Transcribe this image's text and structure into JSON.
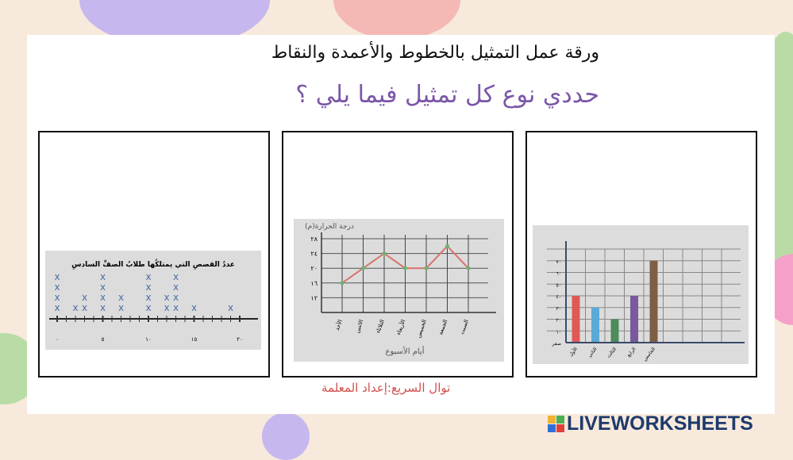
{
  "worksheet": {
    "title": "ورقة عمل التمثيل بالخطوط والأعمدة والنقاط",
    "question": "حددي نوع  كل تمثيل فيما يلي ؟",
    "credit": "توال السريع:إعداد المعلمة"
  },
  "logo": {
    "text": "LIVEWORKSHEETS",
    "badge": [
      "L",
      "I",
      "V",
      "E"
    ]
  },
  "colors": {
    "question": "#7b56a8",
    "credit": "#d0504e",
    "logo": "#1d3a6b"
  },
  "chart_data": [
    {
      "type": "scatter",
      "subtype": "line-plot",
      "title": "عددُ القصصِ التي يمتلكُها طلابُ الصفِّ السادسِ",
      "x_tick_labels": [
        "٠",
        "٥",
        "١٠",
        "١٥",
        "٢٠"
      ],
      "xlim": [
        0,
        20
      ],
      "x": [
        0,
        2,
        3,
        5,
        7,
        10,
        12,
        13,
        15,
        19
      ],
      "counts": [
        4,
        1,
        2,
        4,
        2,
        4,
        2,
        4,
        1,
        1
      ],
      "marker": "X"
    },
    {
      "type": "line",
      "ylabel": "درجة الحرارة(م)",
      "xlabel": "أيام الأسبوع",
      "categories": [
        "الأحد",
        "الاثنين",
        "الثلاثاء",
        "الأربعاء",
        "الخميس",
        "الجمعة",
        "السبت"
      ],
      "values": [
        16,
        20,
        24,
        20,
        20,
        26,
        20
      ],
      "y_tick_labels": [
        "١٢",
        "١٦",
        "٢٠",
        "٢٤",
        "٢٨"
      ],
      "ylim": [
        8,
        28
      ],
      "grid": true,
      "line_color": "#d9726c"
    },
    {
      "type": "bar",
      "categories": [
        "الأول",
        "الثاني",
        "الثالث",
        "الرابع",
        "الخامس"
      ],
      "values": [
        40,
        30,
        20,
        40,
        70
      ],
      "y_tick_labels": [
        "صفر",
        "١٠",
        "٢٠",
        "٣٠",
        "٤٠",
        "٥٠",
        "٦٠",
        "٧٠"
      ],
      "ylim": [
        0,
        80
      ],
      "grid": true,
      "colors": [
        "#e05a55",
        "#5aa9d6",
        "#4d8a5c",
        "#7a5a9a",
        "#7d5f46"
      ]
    }
  ]
}
